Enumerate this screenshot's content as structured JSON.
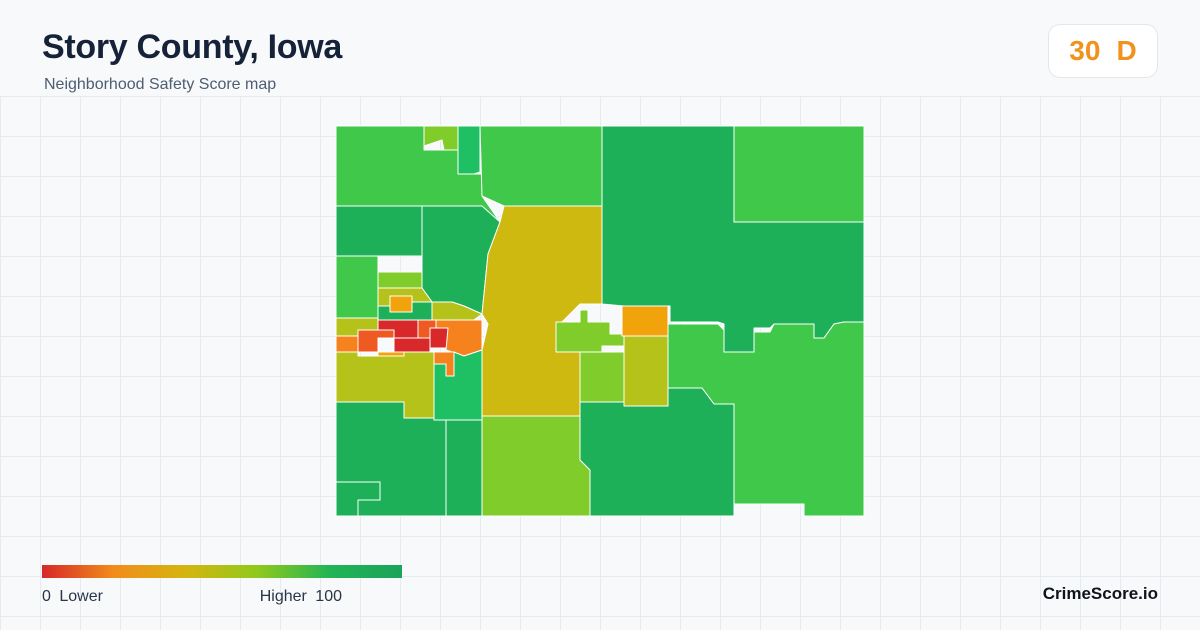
{
  "header": {
    "title": "Story County, Iowa",
    "subtitle": "Neighborhood Safety Score map"
  },
  "score": {
    "value": "30",
    "grade": "D",
    "color": "#f0921b"
  },
  "legend": {
    "min_value": "0",
    "min_label": "Lower",
    "max_label": "Higher",
    "max_value": "100",
    "gradient_colors": [
      "#d62828",
      "#f28c1b",
      "#d4b50f",
      "#8fc91c",
      "#22b455",
      "#1aa35a"
    ]
  },
  "brand": {
    "name": "CrimeScore.io"
  },
  "map_colors": {
    "dark_green": "#1eb058",
    "green": "#40c84a",
    "light_green": "#7fcc2b",
    "yellow_green": "#b5c21a",
    "olive_yellow": "#cdb910",
    "amber": "#f0a30a",
    "orange": "#f5821c",
    "orange_red": "#ee5a22",
    "red": "#d9282a",
    "teal_green": "#1fbf63"
  }
}
